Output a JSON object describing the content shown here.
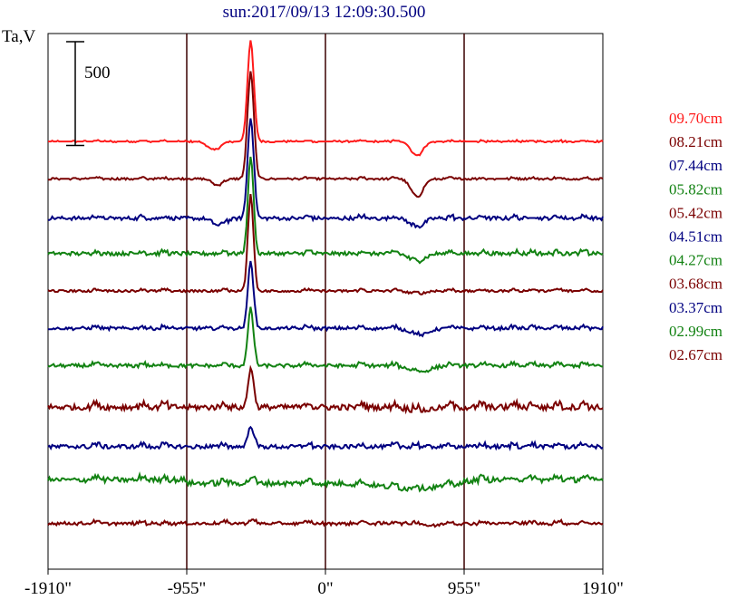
{
  "chart_data": {
    "type": "line",
    "title": "sun:2017/09/13 12:09:30.500",
    "ylabel": "Ta,V",
    "scale_bar_label": "500",
    "scale_bar_value": 500,
    "xlim": [
      -1910,
      1910
    ],
    "xticks": [
      {
        "value": -1910,
        "label": "-1910\""
      },
      {
        "value": -955,
        "label": "-955\""
      },
      {
        "value": 0,
        "label": "0\""
      },
      {
        "value": 955,
        "label": "955\""
      },
      {
        "value": 1910,
        "label": "1910\""
      }
    ],
    "vertical_lines": [
      -955,
      0,
      955
    ],
    "colors": {
      "red": "#ff1a1a",
      "darkred": "#7a0000",
      "navy": "#000080",
      "green": "#128212",
      "title": "#000080"
    },
    "bump_x": [
      -1580,
      -1260,
      -1110,
      -700,
      -500,
      -120,
      250,
      480,
      620,
      860,
      1080,
      1300,
      1420,
      1600,
      1780
    ],
    "series": [
      {
        "name": "09.70cm",
        "color": "#ff1a1a",
        "baseline": 1280,
        "noise": 3,
        "peak": 480,
        "peak_x": -515,
        "peak_w": 22,
        "dips": [
          [
            -765,
            40,
            45
          ],
          [
            630,
            70,
            40
          ]
        ],
        "limb": 0
      },
      {
        "name": "08.21cm",
        "color": "#7a0000",
        "baseline": 1100,
        "noise": 4,
        "peak": 510,
        "peak_x": -515,
        "peak_w": 22,
        "dips": [
          [
            -740,
            30,
            40
          ],
          [
            630,
            90,
            40
          ]
        ],
        "limb": 0
      },
      {
        "name": "07.44cm",
        "color": "#000080",
        "baseline": 910,
        "noise": 8,
        "peak": 480,
        "peak_x": -515,
        "peak_w": 21,
        "dips": [
          [
            -730,
            35,
            45
          ],
          [
            630,
            45,
            45
          ]
        ],
        "limb": 0
      },
      {
        "name": "05.82cm",
        "color": "#128212",
        "baseline": 740,
        "noise": 9,
        "peak": 460,
        "peak_x": -515,
        "peak_w": 19,
        "dips": [
          [
            630,
            40,
            50
          ]
        ],
        "limb": 0
      },
      {
        "name": "05.42cm",
        "color": "#7a0000",
        "baseline": 560,
        "noise": 6,
        "peak": 460,
        "peak_x": -515,
        "peak_w": 19,
        "dips": [
          [
            630,
            15,
            50
          ]
        ],
        "limb": 0
      },
      {
        "name": "04.51cm",
        "color": "#000080",
        "baseline": 380,
        "noise": 7,
        "peak": 320,
        "peak_x": -515,
        "peak_w": 19,
        "dips": [
          [
            650,
            35,
            60
          ]
        ],
        "limb": 0
      },
      {
        "name": "04.27cm",
        "color": "#128212",
        "baseline": 200,
        "noise": 8,
        "peak": 270,
        "peak_x": -515,
        "peak_w": 19,
        "dips": [
          [
            650,
            30,
            70
          ]
        ],
        "limb": 0
      },
      {
        "name": "03.68cm",
        "color": "#7a0000",
        "baseline": 0,
        "noise": 14,
        "peak": 180,
        "peak_x": -515,
        "peak_w": 18,
        "dips": [
          [
            650,
            15,
            80
          ]
        ],
        "limb": 0
      },
      {
        "name": "03.37cm",
        "color": "#000080",
        "baseline": -190,
        "noise": 10,
        "peak": 90,
        "peak_x": -515,
        "peak_w": 20,
        "dips": [],
        "limb": 0
      },
      {
        "name": "02.99cm",
        "color": "#128212",
        "baseline": -350,
        "noise": 12,
        "peak": 18,
        "peak_x": -515,
        "peak_w": 18,
        "dips": [
          [
            600,
            25,
            200
          ]
        ],
        "limb": 40
      },
      {
        "name": "02.67cm",
        "color": "#7a0000",
        "baseline": -560,
        "noise": 7,
        "peak": 12,
        "peak_x": -515,
        "peak_w": 18,
        "dips": [
          [
            740,
            12,
            40
          ]
        ],
        "limb": 0
      }
    ],
    "ylim": [
      -780,
      1800
    ],
    "grid": false,
    "legend_position": "right"
  }
}
